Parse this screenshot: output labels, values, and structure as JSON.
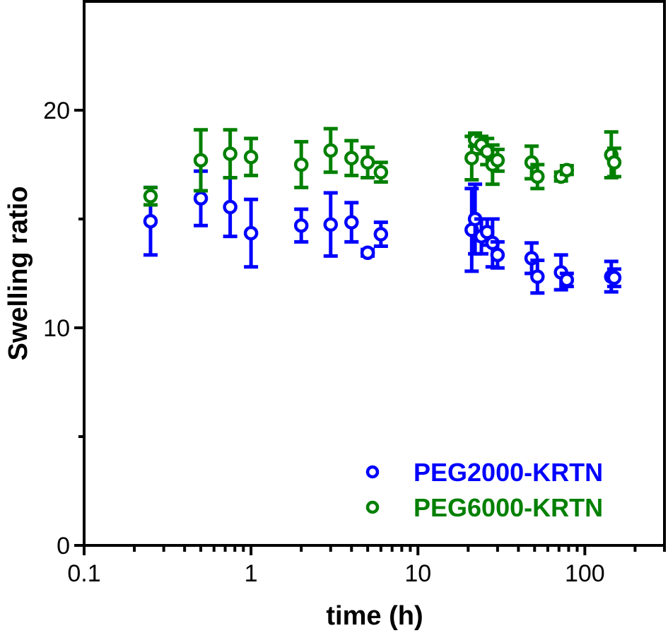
{
  "chart_data": {
    "type": "scatter",
    "title": "",
    "xlabel": "time (h)",
    "ylabel": "Swelling ratio",
    "xscale": "log",
    "xlim": [
      0.1,
      300
    ],
    "ylim": [
      0,
      25
    ],
    "xticks": [
      {
        "value": 0.1,
        "label": "0.1"
      },
      {
        "value": 1,
        "label": "1"
      },
      {
        "value": 10,
        "label": "10"
      },
      {
        "value": 100,
        "label": "100"
      }
    ],
    "yticks": [
      {
        "value": 0,
        "label": "0"
      },
      {
        "value": 10,
        "label": "10"
      },
      {
        "value": 20,
        "label": "20"
      }
    ],
    "yminor_ticks": [
      5,
      15
    ],
    "grid": false,
    "legend_position": "bottom-right",
    "series": [
      {
        "name": "PEG2000-KRTN",
        "color": "#0000ff",
        "marker": "open-circle",
        "points": [
          {
            "x": 0.25,
            "y": 14.9,
            "err": 1.55
          },
          {
            "x": 0.5,
            "y": 15.95,
            "err": 1.25
          },
          {
            "x": 0.75,
            "y": 15.55,
            "err": 1.35
          },
          {
            "x": 1,
            "y": 14.35,
            "err": 1.55
          },
          {
            "x": 2,
            "y": 14.7,
            "err": 0.75
          },
          {
            "x": 3,
            "y": 14.75,
            "err": 1.45
          },
          {
            "x": 4,
            "y": 14.85,
            "err": 0.9
          },
          {
            "x": 5,
            "y": 13.45,
            "err": 0.15
          },
          {
            "x": 6,
            "y": 14.3,
            "err": 0.55
          },
          {
            "x": 21,
            "y": 14.5,
            "err": 1.9
          },
          {
            "x": 22,
            "y": 15.0,
            "err": 1.6
          },
          {
            "x": 24,
            "y": 14.2,
            "err": 0.8
          },
          {
            "x": 26,
            "y": 14.4,
            "err": 0.6
          },
          {
            "x": 28,
            "y": 13.9,
            "err": 1.1
          },
          {
            "x": 30,
            "y": 13.35,
            "err": 0.6
          },
          {
            "x": 48,
            "y": 13.2,
            "err": 0.7
          },
          {
            "x": 52,
            "y": 12.35,
            "err": 0.75
          },
          {
            "x": 72,
            "y": 12.55,
            "err": 0.8
          },
          {
            "x": 78,
            "y": 12.2,
            "err": 0.3
          },
          {
            "x": 144,
            "y": 12.35,
            "err": 0.7
          },
          {
            "x": 150,
            "y": 12.3,
            "err": 0.4
          }
        ]
      },
      {
        "name": "PEG6000-KRTN",
        "color": "#008000",
        "marker": "open-circle",
        "points": [
          {
            "x": 0.25,
            "y": 16.05,
            "err": 0.4
          },
          {
            "x": 0.5,
            "y": 17.7,
            "err": 1.4
          },
          {
            "x": 0.75,
            "y": 18.0,
            "err": 1.1
          },
          {
            "x": 1,
            "y": 17.85,
            "err": 0.85
          },
          {
            "x": 2,
            "y": 17.5,
            "err": 1.05
          },
          {
            "x": 3,
            "y": 18.15,
            "err": 1.0
          },
          {
            "x": 4,
            "y": 17.8,
            "err": 0.8
          },
          {
            "x": 5,
            "y": 17.6,
            "err": 0.7
          },
          {
            "x": 6,
            "y": 17.15,
            "err": 0.45
          },
          {
            "x": 21,
            "y": 17.8,
            "err": 1.0
          },
          {
            "x": 22,
            "y": 18.65,
            "err": 0.3
          },
          {
            "x": 24,
            "y": 18.4,
            "err": 0.4
          },
          {
            "x": 26,
            "y": 18.1,
            "err": 0.6
          },
          {
            "x": 28,
            "y": 17.5,
            "err": 0.9
          },
          {
            "x": 30,
            "y": 17.7,
            "err": 0.5
          },
          {
            "x": 48,
            "y": 17.6,
            "err": 0.75
          },
          {
            "x": 52,
            "y": 16.95,
            "err": 0.55
          },
          {
            "x": 72,
            "y": 16.95,
            "err": 0.2
          },
          {
            "x": 78,
            "y": 17.25,
            "err": 0.2
          },
          {
            "x": 144,
            "y": 17.95,
            "err": 1.05
          },
          {
            "x": 150,
            "y": 17.6,
            "err": 0.65
          }
        ]
      }
    ]
  }
}
